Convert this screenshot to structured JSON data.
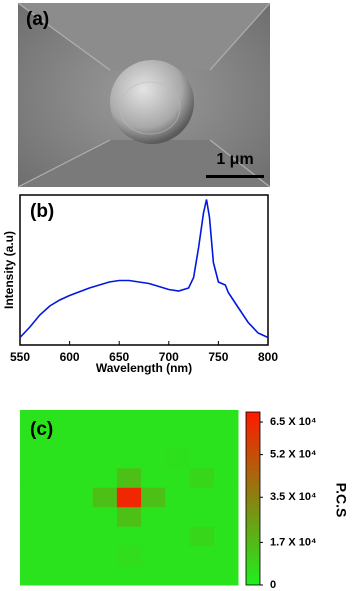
{
  "chart_data": [
    {
      "type": "image",
      "label": "(a)",
      "scale_bar": "1 μm"
    },
    {
      "type": "line",
      "label": "(b)",
      "x_label": "Wavelength (nm)",
      "y_label": "Intensity (a.u)",
      "xlim": [
        550,
        800
      ],
      "xticks": [
        550,
        600,
        650,
        700,
        750,
        800
      ],
      "ylim": [
        0,
        1
      ],
      "x": [
        550,
        560,
        570,
        580,
        590,
        600,
        620,
        640,
        650,
        660,
        680,
        700,
        710,
        720,
        725,
        730,
        735,
        738,
        741,
        745,
        750,
        757,
        760,
        770,
        780,
        790,
        800
      ],
      "series": [
        {
          "color": "#0018e0",
          "values": [
            0.05,
            0.12,
            0.2,
            0.26,
            0.3,
            0.33,
            0.38,
            0.42,
            0.43,
            0.43,
            0.41,
            0.37,
            0.36,
            0.38,
            0.45,
            0.65,
            0.88,
            0.97,
            0.85,
            0.55,
            0.42,
            0.4,
            0.35,
            0.25,
            0.15,
            0.08,
            0.05
          ]
        }
      ]
    },
    {
      "type": "heatmap",
      "label": "(c)",
      "colorbar_label": "P.C.S",
      "ylim": [
        0,
        69000
      ],
      "yticks": [
        0,
        {
          "value": 17000,
          "label": "1.7 X 10⁴"
        },
        {
          "value": 35000,
          "label": "3.5 X 10⁴"
        },
        {
          "value": 52000,
          "label": "5.2 X 10⁴"
        },
        {
          "value": 65000,
          "label": "6.5 X 10⁴"
        }
      ],
      "values": [
        [
          4000,
          4000,
          4000,
          4000,
          4000,
          4000,
          4000,
          4000,
          4000
        ],
        [
          4000,
          4000,
          4000,
          4000,
          4000,
          4000,
          4000,
          4000,
          4000
        ],
        [
          4000,
          4000,
          4000,
          4000,
          4000,
          4000,
          5000,
          4000,
          4000
        ],
        [
          4000,
          4000,
          4000,
          4000,
          15000,
          4000,
          4000,
          8000,
          4000
        ],
        [
          4000,
          4000,
          4000,
          15000,
          65000,
          15000,
          4000,
          4000,
          4000
        ],
        [
          4000,
          4000,
          4000,
          4000,
          15000,
          4000,
          4000,
          4000,
          4000
        ],
        [
          4000,
          4000,
          4000,
          4000,
          4000,
          4000,
          4000,
          8000,
          4000
        ],
        [
          4000,
          4000,
          4000,
          4000,
          6000,
          4000,
          4000,
          4000,
          4000
        ],
        [
          4000,
          4000,
          4000,
          4000,
          4000,
          4000,
          4000,
          4000,
          4000
        ]
      ]
    }
  ]
}
